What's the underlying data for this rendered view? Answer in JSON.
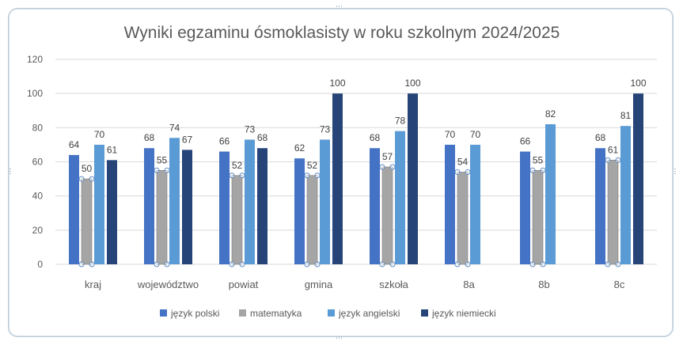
{
  "chart_data": {
    "type": "bar",
    "title": "Wyniki egzaminu ósmoklasisty w roku szkolnym 2024/2025",
    "categories": [
      "kraj",
      "województwo",
      "powiat",
      "gmina",
      "szkoła",
      "8a",
      "8b",
      "8c"
    ],
    "series": [
      {
        "name": "język polski",
        "color": "#4472C4",
        "values": [
          64,
          68,
          66,
          62,
          68,
          70,
          66,
          68
        ]
      },
      {
        "name": "matematyka",
        "color": "#A5A5A5",
        "values": [
          50,
          55,
          52,
          52,
          57,
          54,
          55,
          61
        ]
      },
      {
        "name": "język angielski",
        "color": "#5B9BD5",
        "values": [
          70,
          74,
          73,
          73,
          78,
          70,
          82,
          81
        ]
      },
      {
        "name": "język niemiecki",
        "color": "#264478",
        "values": [
          61,
          67,
          68,
          100,
          100,
          null,
          null,
          100
        ]
      }
    ],
    "ylim": [
      0,
      120
    ],
    "yticks": [
      0,
      20,
      40,
      60,
      80,
      100,
      120
    ],
    "grid": true,
    "legend_position": "bottom",
    "data_labels": true,
    "selected_series": "matematyka"
  }
}
